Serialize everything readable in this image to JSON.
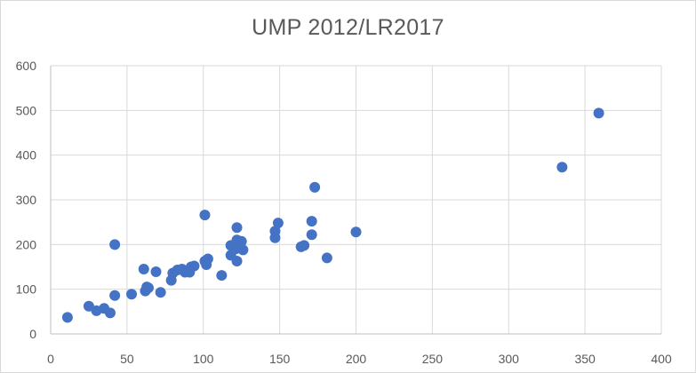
{
  "chart_data": {
    "type": "scatter",
    "title": "UMP 2012/LR2017",
    "xlabel": "",
    "ylabel": "",
    "xlim": [
      0,
      400
    ],
    "ylim": [
      0,
      600
    ],
    "xticks": [
      0,
      50,
      100,
      150,
      200,
      250,
      300,
      350,
      400
    ],
    "yticks": [
      0,
      100,
      200,
      300,
      400,
      500,
      600
    ],
    "grid": true,
    "legend": "none",
    "marker_color": "#4472c4",
    "points": [
      {
        "x": 11,
        "y": 37
      },
      {
        "x": 25,
        "y": 62
      },
      {
        "x": 30,
        "y": 52
      },
      {
        "x": 35,
        "y": 57
      },
      {
        "x": 39,
        "y": 47
      },
      {
        "x": 42,
        "y": 86
      },
      {
        "x": 42,
        "y": 200
      },
      {
        "x": 53,
        "y": 89
      },
      {
        "x": 61,
        "y": 145
      },
      {
        "x": 62,
        "y": 96
      },
      {
        "x": 63,
        "y": 105
      },
      {
        "x": 64,
        "y": 103
      },
      {
        "x": 69,
        "y": 139
      },
      {
        "x": 72,
        "y": 93
      },
      {
        "x": 79,
        "y": 120
      },
      {
        "x": 80,
        "y": 136
      },
      {
        "x": 83,
        "y": 143
      },
      {
        "x": 86,
        "y": 145
      },
      {
        "x": 88,
        "y": 138
      },
      {
        "x": 91,
        "y": 138
      },
      {
        "x": 92,
        "y": 150
      },
      {
        "x": 94,
        "y": 152
      },
      {
        "x": 101,
        "y": 163
      },
      {
        "x": 101,
        "y": 266
      },
      {
        "x": 102,
        "y": 155
      },
      {
        "x": 103,
        "y": 168
      },
      {
        "x": 112,
        "y": 131
      },
      {
        "x": 118,
        "y": 176
      },
      {
        "x": 118,
        "y": 198
      },
      {
        "x": 121,
        "y": 190
      },
      {
        "x": 122,
        "y": 163
      },
      {
        "x": 122,
        "y": 238
      },
      {
        "x": 122,
        "y": 210
      },
      {
        "x": 124,
        "y": 204
      },
      {
        "x": 125,
        "y": 207
      },
      {
        "x": 126,
        "y": 188
      },
      {
        "x": 147,
        "y": 215
      },
      {
        "x": 147,
        "y": 230
      },
      {
        "x": 149,
        "y": 248
      },
      {
        "x": 164,
        "y": 195
      },
      {
        "x": 166,
        "y": 198
      },
      {
        "x": 171,
        "y": 222
      },
      {
        "x": 171,
        "y": 252
      },
      {
        "x": 173,
        "y": 328
      },
      {
        "x": 181,
        "y": 170
      },
      {
        "x": 200,
        "y": 228
      },
      {
        "x": 335,
        "y": 373
      },
      {
        "x": 359,
        "y": 494
      }
    ]
  }
}
